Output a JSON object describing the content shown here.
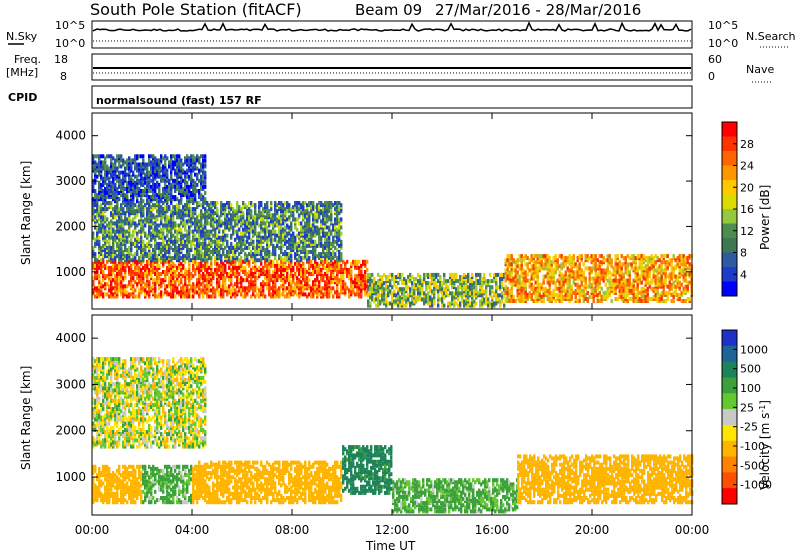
{
  "header": {
    "title": "South Pole Station (fitACF)",
    "beam": "Beam 09",
    "date_range": "27/Mar/2016 - 28/Mar/2016"
  },
  "summary_panels": {
    "nsky_label": "N.Sky",
    "nsky_ticks": [
      "10^5",
      "10^0"
    ],
    "nsearch_label": "N.Search",
    "nsearch_ticks": [
      "10^5",
      "10^0"
    ],
    "freq_label_1": "Freq.",
    "freq_label_2": "[MHz]",
    "freq_ticks": [
      "18",
      "8"
    ],
    "nave_label": "Nave",
    "nave_ticks": [
      "60",
      "0"
    ],
    "cpid_label": "CPID",
    "cpid_value": "normalsound (fast) 157 RF"
  },
  "chart_data": [
    {
      "type": "heatmap",
      "name": "power",
      "xlabel": "Time UT",
      "ylabel": "Slant Range [km]",
      "x_ticks": [
        "00:00",
        "04:00",
        "08:00",
        "12:00",
        "16:00",
        "20:00",
        "00:00"
      ],
      "x_range_hours": [
        0,
        24
      ],
      "y_ticks": [
        1000,
        2000,
        3000,
        4000
      ],
      "ylim": [
        180,
        4500
      ],
      "colorbar": {
        "label": "Power [dB]",
        "ticks": [
          "4",
          "8",
          "12",
          "16",
          "20",
          "24",
          "28"
        ],
        "colors": [
          "#0000ff",
          "#1e3cc8",
          "#2d5aa0",
          "#3c7850",
          "#508c50",
          "#96c83c",
          "#dcdc00",
          "#ffc800",
          "#ff9600",
          "#ff6400",
          "#ff3200",
          "#ff0000"
        ]
      },
      "echo_bands": [
        {
          "t0": 0.0,
          "t1": 11.0,
          "r0": 500,
          "r1": 1300,
          "value": 26
        },
        {
          "t0": 11.0,
          "t1": 16.5,
          "r0": 300,
          "r1": 1000,
          "value": 14
        },
        {
          "t0": 16.5,
          "t1": 24.0,
          "r0": 400,
          "r1": 1400,
          "value": 22
        },
        {
          "t0": 0.0,
          "t1": 10.0,
          "r0": 1300,
          "r1": 2600,
          "value": 10
        },
        {
          "t0": 0.0,
          "t1": 4.5,
          "r0": 2600,
          "r1": 3600,
          "value": 6
        }
      ]
    },
    {
      "type": "heatmap",
      "name": "velocity",
      "xlabel": "Time UT",
      "ylabel": "Slant Range [km]",
      "x_ticks": [
        "00:00",
        "04:00",
        "08:00",
        "12:00",
        "16:00",
        "20:00",
        "00:00"
      ],
      "x_range_hours": [
        0,
        24
      ],
      "y_ticks": [
        1000,
        2000,
        3000,
        4000
      ],
      "ylim": [
        180,
        4500
      ],
      "colorbar": {
        "label": "Velocity [m s^-1]",
        "ticks": [
          "1000",
          "500",
          "100",
          "25",
          "-25",
          "-100",
          "-500",
          "-1000"
        ],
        "colors": [
          "#1e32c8",
          "#1e6496",
          "#1e825a",
          "#3ca03c",
          "#64c832",
          "#c8c8c8",
          "#ffe600",
          "#ffb400",
          "#ff8200",
          "#ff5000",
          "#ff0000"
        ]
      },
      "echo_bands": [
        {
          "t0": 0.0,
          "t1": 2.0,
          "r0": 500,
          "r1": 1300,
          "value": -300
        },
        {
          "t0": 2.0,
          "t1": 4.0,
          "r0": 500,
          "r1": 1300,
          "value": 150
        },
        {
          "t0": 4.0,
          "t1": 10.0,
          "r0": 500,
          "r1": 1400,
          "value": -300
        },
        {
          "t0": 10.0,
          "t1": 12.0,
          "r0": 700,
          "r1": 1700,
          "value": 600
        },
        {
          "t0": 12.0,
          "t1": 17.0,
          "r0": 300,
          "r1": 1000,
          "value": 150
        },
        {
          "t0": 17.0,
          "t1": 24.0,
          "r0": 500,
          "r1": 1500,
          "value": -300
        },
        {
          "t0": 0.0,
          "t1": 4.5,
          "r0": 1700,
          "r1": 3600,
          "value": 0
        }
      ]
    }
  ]
}
